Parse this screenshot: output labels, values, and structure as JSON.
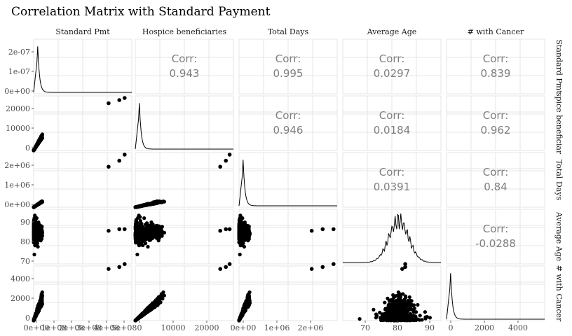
{
  "title": "Correlation Matrix with Standard Payment",
  "chart_data": {
    "type": "scatter",
    "variables": [
      "Standard Pmt",
      "Hospice beneficiaries",
      "Total Days",
      "Average Age",
      "# with Cancer"
    ],
    "row_strip_labels": [
      "Standard Pmt",
      "spice beneficiar",
      "Total Days",
      "Average Age",
      "# with Cancer"
    ],
    "corr_label": "Corr:",
    "correlations": [
      {
        "row": 0,
        "col": 1,
        "value": "0.943"
      },
      {
        "row": 0,
        "col": 2,
        "value": "0.995"
      },
      {
        "row": 0,
        "col": 3,
        "value": "0.0297"
      },
      {
        "row": 0,
        "col": 4,
        "value": "0.839"
      },
      {
        "row": 1,
        "col": 2,
        "value": "0.946"
      },
      {
        "row": 1,
        "col": 3,
        "value": "0.0184"
      },
      {
        "row": 1,
        "col": 4,
        "value": "0.962"
      },
      {
        "row": 2,
        "col": 3,
        "value": "0.0391"
      },
      {
        "row": 2,
        "col": 4,
        "value": "0.84"
      },
      {
        "row": 3,
        "col": 4,
        "value": "-0.0288"
      }
    ],
    "y_ticks": [
      [
        "0e+00",
        "1e-07",
        "2e-07"
      ],
      [
        "0",
        "10000",
        "20000"
      ],
      [
        "0e+00",
        "1e+06",
        "2e+06"
      ],
      [
        "70",
        "80",
        "90"
      ],
      [
        "0",
        "2000",
        "4000"
      ]
    ],
    "x_ticks": [
      [
        "0e+00",
        "1e+08",
        "2e+08",
        "3e+08",
        "4e+08",
        "5e+08"
      ],
      [
        "0",
        "10000",
        "20000"
      ],
      [
        "0e+00",
        "1e+06",
        "2e+06"
      ],
      [
        "70",
        "80",
        "90"
      ],
      [
        "0",
        "2000",
        "4000"
      ]
    ],
    "ranges": [
      [
        0,
        550000000
      ],
      [
        0,
        26000
      ],
      [
        0,
        2700000
      ],
      [
        63,
        96
      ],
      [
        0,
        5600
      ]
    ],
    "diag_density_ranges": [
      [
        0,
        270000000
      ],
      null,
      null,
      null,
      null
    ],
    "outliers": [
      {
        "sp": 420000000,
        "hb": 22500,
        "td": 2000000,
        "age": 83,
        "ca": 5300
      },
      {
        "sp": 480000000,
        "hb": 24000,
        "td": 2300000,
        "age": 84,
        "ca": 5500
      },
      {
        "sp": 510000000,
        "hb": 25000,
        "td": 2600000,
        "age": 84,
        "ca": 5800
      }
    ],
    "grid": true,
    "legend": "none"
  }
}
